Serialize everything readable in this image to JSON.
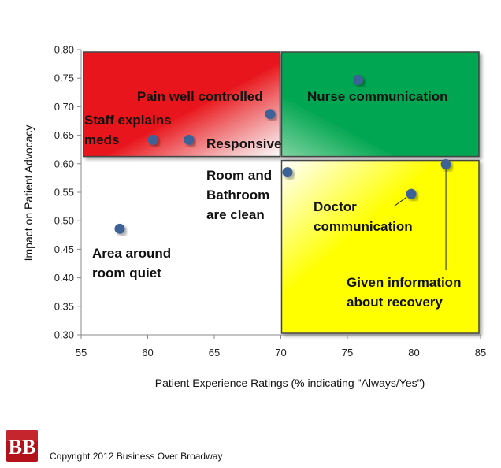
{
  "chart_data": {
    "type": "scatter",
    "xlabel": "Patient Experience Ratings (% indicating \"Always/Yes\")",
    "ylabel": "Impact on Patient Advocacy",
    "xlim": [
      55,
      85
    ],
    "ylim": [
      0.3,
      0.8
    ],
    "x_ticks": [
      "55",
      "60",
      "65",
      "70",
      "75",
      "80",
      "85"
    ],
    "y_ticks": [
      "0.30",
      "0.35",
      "0.40",
      "0.45",
      "0.50",
      "0.55",
      "0.60",
      "0.65",
      "0.70",
      "0.75",
      "0.80"
    ],
    "grid": false,
    "quadrants": [
      {
        "x": [
          55,
          70
        ],
        "y": [
          0.61,
          0.8
        ],
        "color": "#e8171c"
      },
      {
        "x": [
          70,
          85
        ],
        "y": [
          0.61,
          0.8
        ],
        "color": "#00a651"
      },
      {
        "x": [
          70,
          85
        ],
        "y": [
          0.3,
          0.61
        ],
        "color": "#ffff00"
      }
    ],
    "points": [
      {
        "x": 60.4,
        "y": 0.642,
        "label": [
          "Staff explains",
          "meds"
        ]
      },
      {
        "x": 63.1,
        "y": 0.642,
        "label": [
          "Responsive"
        ]
      },
      {
        "x": 69.2,
        "y": 0.687,
        "label": [
          "Pain well controlled"
        ]
      },
      {
        "x": 70.5,
        "y": 0.585,
        "label": [
          "Room and",
          "Bathroom",
          "are clean"
        ]
      },
      {
        "x": 75.8,
        "y": 0.747,
        "label": [
          "Nurse communication"
        ]
      },
      {
        "x": 79.8,
        "y": 0.547,
        "label": [
          "Doctor",
          "communication"
        ]
      },
      {
        "x": 82.4,
        "y": 0.599,
        "label": [
          "Given information",
          "about  recovery"
        ]
      },
      {
        "x": 57.9,
        "y": 0.486,
        "label": [
          "Area around",
          "room quiet"
        ]
      }
    ],
    "marker_color": "#3d6298"
  },
  "footer": {
    "logo_letters": "BB",
    "copyright": "Copyright 2012 Business Over Broadway"
  }
}
